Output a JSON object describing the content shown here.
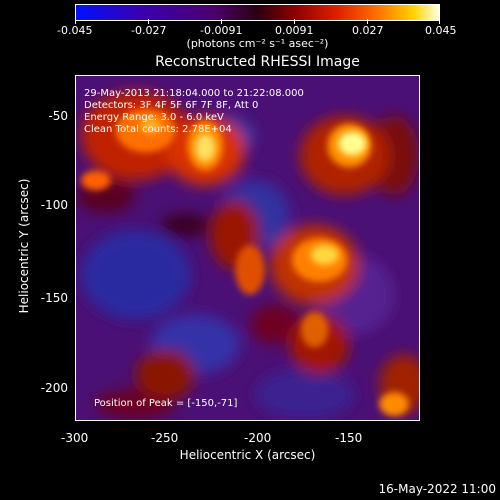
{
  "colorbar": {
    "ticks": [
      "-0.045",
      "-0.027",
      "-0.0091",
      "0.0091",
      "0.027",
      "0.045"
    ],
    "unit_label": "(photons cm⁻² s⁻¹ asec⁻²)"
  },
  "title": "Reconstructed RHESSI Image",
  "info": {
    "time": "29-May-2013 21:18:04.000 to 21:22:08.000",
    "detectors": "Detectors: 3F 4F 5F 6F 7F 8F, Att 0",
    "energy": "Energy Range: 3.0 - 6.0 keV",
    "clean": "Clean    Total counts: 2.78E+04",
    "peak": "Position of Peak = [-150,-71]"
  },
  "axes": {
    "xlabel": "Heliocentric X (arcsec)",
    "ylabel": "Heliocentric Y (arcsec)",
    "xticks": [
      "-300",
      "-250",
      "-200",
      "-150"
    ],
    "yticks": [
      "-50",
      "-100",
      "-150",
      "-200"
    ]
  },
  "datestamp": "16-May-2022 11:00"
}
